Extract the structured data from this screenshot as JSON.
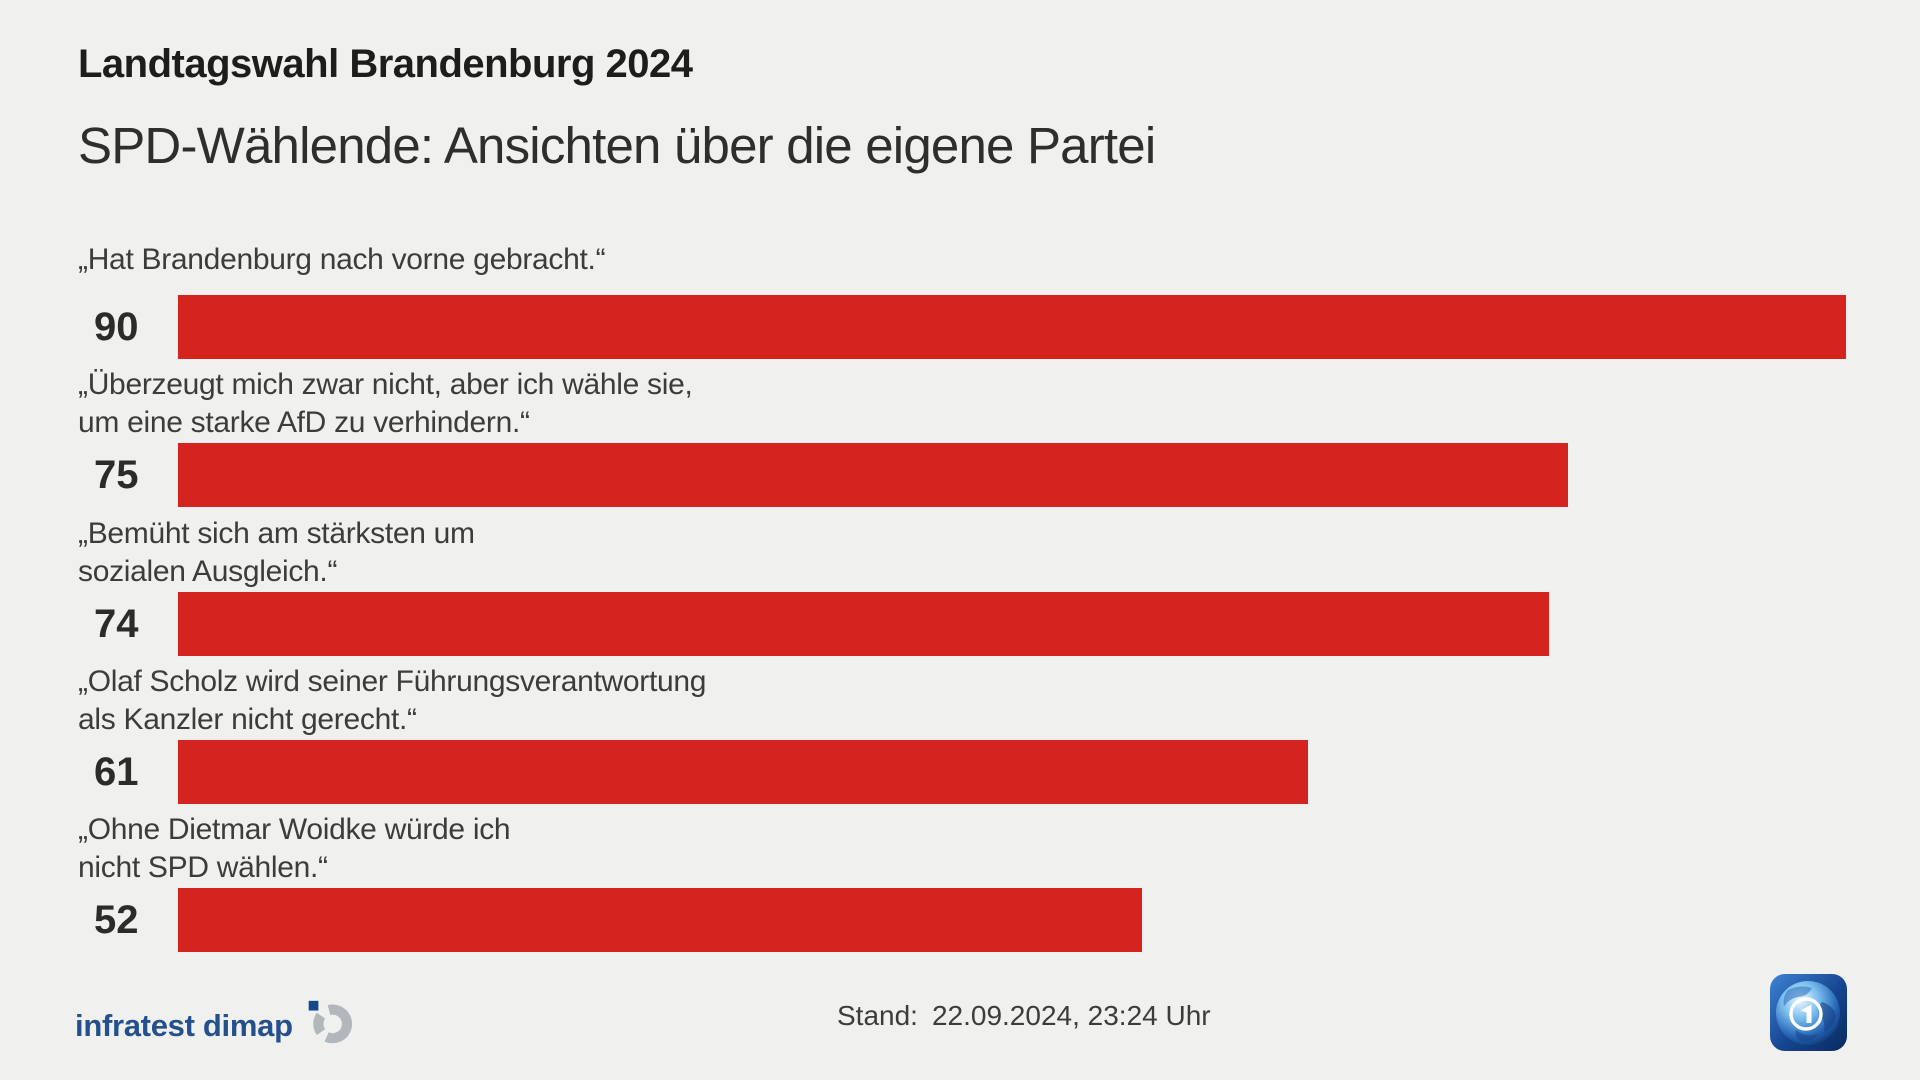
{
  "header": {
    "kicker": "Landtagswahl Brandenburg 2024",
    "title": "SPD-Wählende: Ansichten über die eigene Partei"
  },
  "chart_data": {
    "type": "bar",
    "orientation": "horizontal",
    "title": "SPD-Wählende: Ansichten über die eigene Partei",
    "categories": [
      "„Hat Brandenburg nach vorne gebracht.“",
      "„Überzeugt mich zwar nicht, aber ich wähle sie, um eine starke AfD zu verhindern.“",
      "„Bemüht sich am stärksten um sozialen Ausgleich.“",
      "„Olaf Scholz wird seiner Führungsverantwortung als Kanzler nicht gerecht.“",
      "„Ohne Dietmar Woidke würde ich nicht SPD wählen.“"
    ],
    "values": [
      90,
      75,
      74,
      61,
      52
    ],
    "label_lines": [
      [
        "„Hat Brandenburg nach vorne gebracht.“"
      ],
      [
        "„Überzeugt mich zwar nicht, aber ich wähle sie,",
        "um eine starke AfD zu verhindern.“"
      ],
      [
        "„Bemüht sich am stärksten um",
        "sozialen Ausgleich.“"
      ],
      [
        "„Olaf Scholz wird seiner Führungsverantwortung",
        "als Kanzler nicht gerecht.“"
      ],
      [
        "„Ohne Dietmar Woidke würde ich",
        "nicht SPD wählen.“"
      ]
    ],
    "bar_color": "#d5231f",
    "xlim": [
      0,
      100
    ],
    "grid": false,
    "legend": false,
    "value_label_position": "left-of-bar"
  },
  "footer": {
    "source_brand": "infratest dimap",
    "stand_label": "Stand:",
    "stand_value": "22.09.2024, 23:24 Uhr"
  },
  "colors": {
    "background": "#f0f0ee",
    "bar": "#d5231f",
    "kicker_text": "#1d1d1b",
    "title_text": "#2e2e2c",
    "label_text": "#3c3c3a",
    "value_text": "#2b2b29",
    "brand_blue": "#24508c",
    "brand_gray": "#b2b7bb"
  },
  "icons": {
    "brand_logo": "infratest-dimap-logo-icon",
    "broadcaster_logo": "ard-tagesschau-logo-icon"
  }
}
